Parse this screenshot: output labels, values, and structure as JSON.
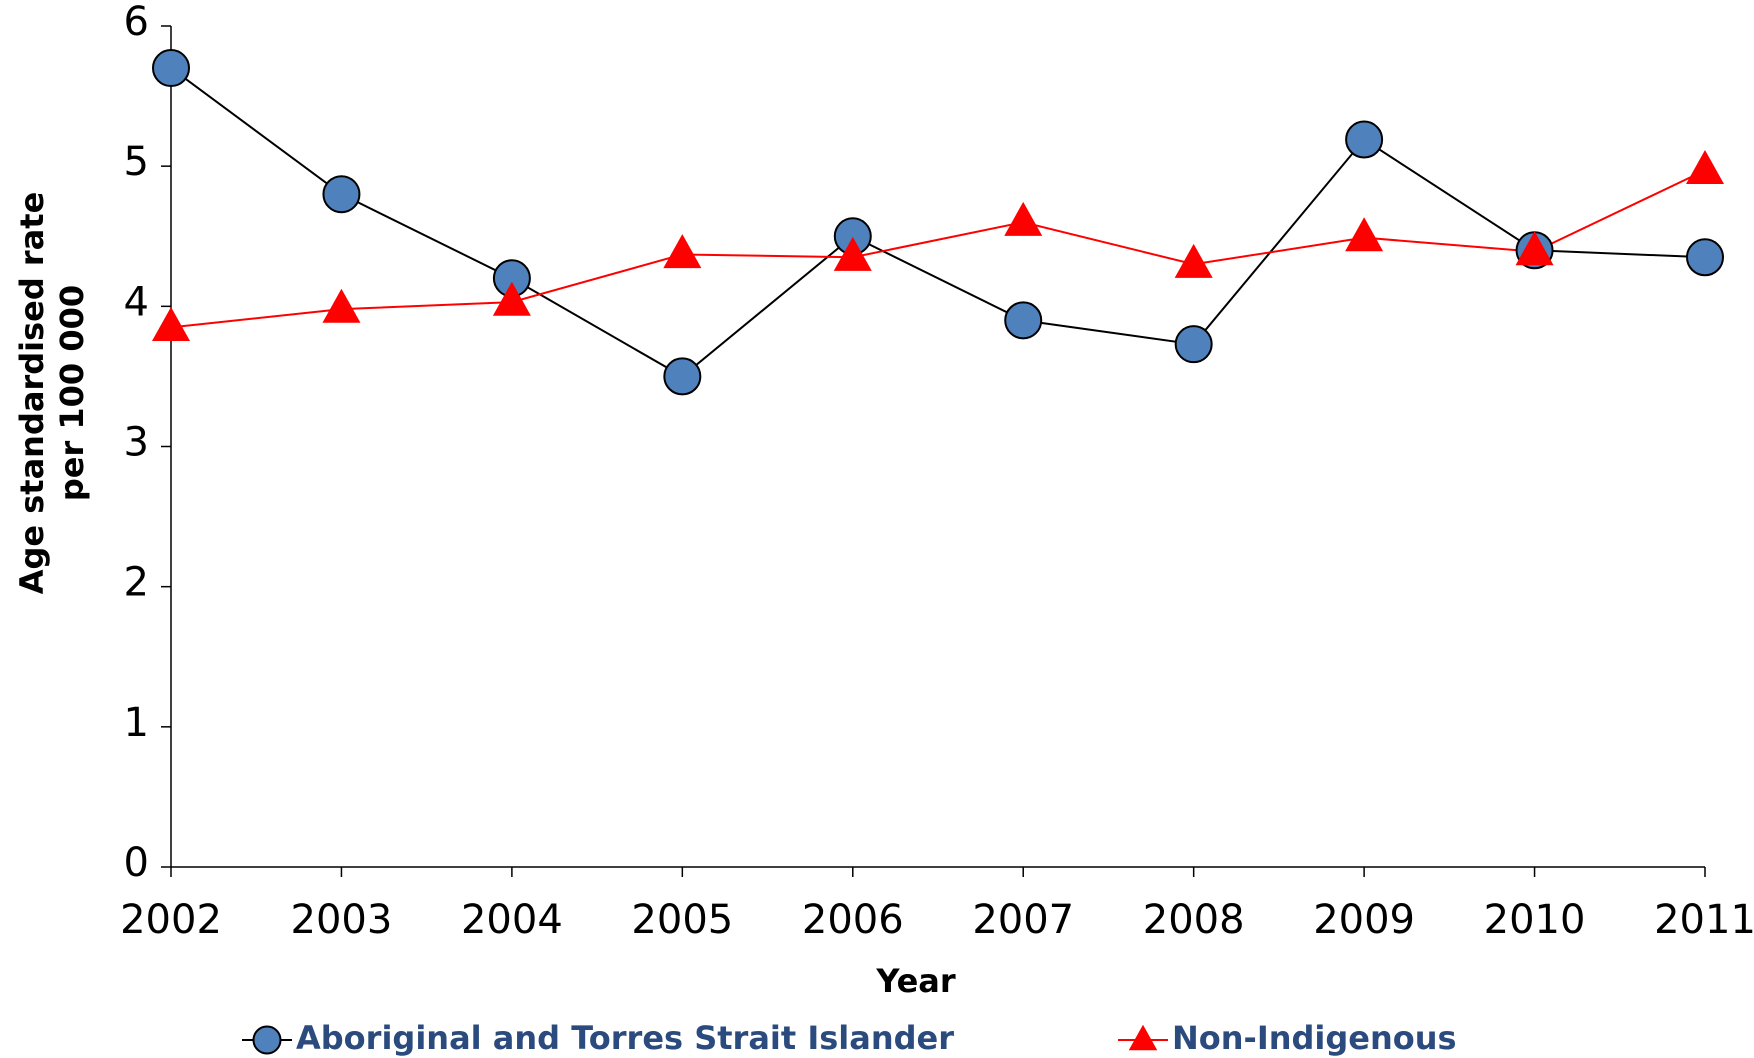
{
  "chart_data": {
    "type": "line",
    "xlabel": "Year",
    "ylabel": [
      "Age standardised rate",
      "per 100 000"
    ],
    "categories": [
      "2002",
      "2003",
      "2004",
      "2005",
      "2006",
      "2007",
      "2008",
      "2009",
      "2010",
      "2011"
    ],
    "series": [
      {
        "name": "Aboriginal and Torres Strait Islander",
        "color": "#4f81bd",
        "line_color": "#000000",
        "marker": "circle",
        "values": [
          5.7,
          4.8,
          4.2,
          3.5,
          4.5,
          3.9,
          3.73,
          5.19,
          4.4,
          4.35
        ]
      },
      {
        "name": "Non-Indigenous",
        "color": "#ff0000",
        "line_color": "#ff0000",
        "marker": "triangle",
        "values": [
          3.85,
          3.98,
          4.03,
          4.37,
          4.35,
          4.6,
          4.3,
          4.49,
          4.39,
          4.97
        ]
      }
    ],
    "ylim": [
      0,
      6
    ],
    "yticks": [
      0,
      1,
      2,
      3,
      4,
      5,
      6
    ],
    "grid": false,
    "legend": "bottom"
  }
}
